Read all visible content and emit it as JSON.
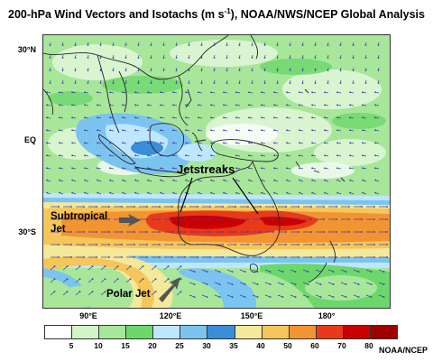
{
  "title_text": "200-hPa Wind Vectors and Isotachs (m s",
  "title_sup": "-1",
  "title_tail": "), NOAA/NWS/NCEP Global Analysis",
  "lat_labels": [
    "30°N",
    "EQ",
    "30°S"
  ],
  "lon_labels": [
    "90°E",
    "120°E",
    "150°E",
    "180°"
  ],
  "annotations": {
    "jetstreaks": "Jetstreaks",
    "subtropical_line1": "Subtropical",
    "subtropical_line2": "Jet",
    "polar_jet": "Polar Jet"
  },
  "legend": {
    "ticks": [
      "5",
      "10",
      "15",
      "20",
      "25",
      "30",
      "35",
      "40",
      "50",
      "60",
      "70",
      "80"
    ],
    "colors": [
      "#ffffff",
      "#d2f5c8",
      "#a8e69a",
      "#6cd86c",
      "#bfe6ff",
      "#7cc4f0",
      "#3a8ed8",
      "#f4e89a",
      "#f6c65a",
      "#f29432",
      "#e83a1a",
      "#c80000",
      "#a00000"
    ],
    "units": "m s-1"
  },
  "credit": "NOAA/NCEP"
}
